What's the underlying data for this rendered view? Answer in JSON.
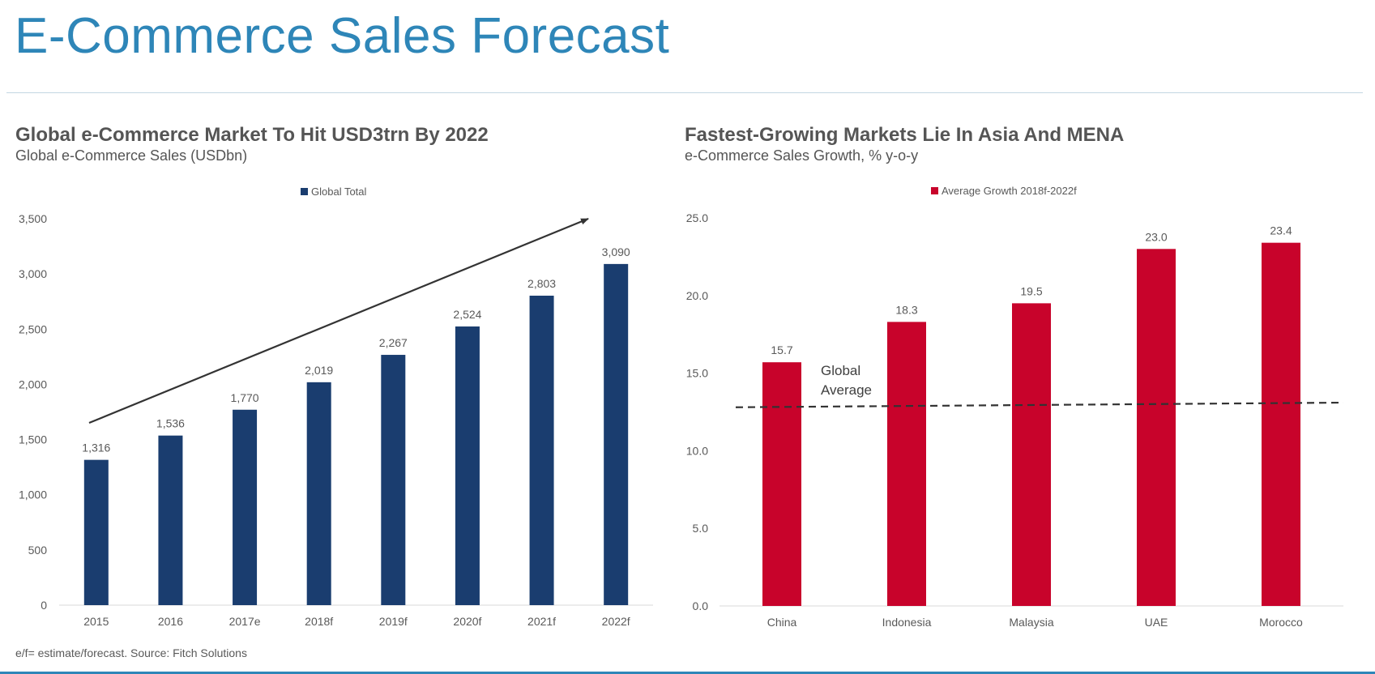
{
  "page": {
    "title": "E-Commerce Sales Forecast",
    "footnote": "e/f= estimate/forecast. Source: Fitch Solutions"
  },
  "colors": {
    "title": "#2e86b8",
    "left_bar": "#1a3d6f",
    "right_bar": "#c8032b",
    "text": "#595959",
    "axis": "#d9d9d9",
    "annotation": "#333333"
  },
  "left_chart": {
    "title": "Global e-Commerce Market To Hit USD3trn By 2022",
    "subtitle": "Global e-Commerce Sales (USDbn)"
  },
  "right_chart": {
    "title": "Fastest-Growing Markets Lie In Asia And MENA",
    "subtitle": "e-Commerce Sales Growth, % y-o-y",
    "annotation": [
      "Global",
      "Average"
    ]
  },
  "chart_data": [
    {
      "type": "bar",
      "title": "Global e-Commerce Market To Hit USD3trn By 2022",
      "subtitle": "Global e-Commerce Sales (USDbn)",
      "categories": [
        "2015",
        "2016",
        "2017e",
        "2018f",
        "2019f",
        "2020f",
        "2021f",
        "2022f"
      ],
      "series": [
        {
          "name": "Global Total",
          "values": [
            1316,
            1536,
            1770,
            2019,
            2267,
            2524,
            2803,
            3090
          ],
          "labels": [
            "1,316",
            "1,536",
            "1,770",
            "2,019",
            "2,267",
            "2,524",
            "2,803",
            "3,090"
          ]
        }
      ],
      "yticks": [
        "0",
        "500",
        "1,000",
        "1,500",
        "2,000",
        "2,500",
        "3,000",
        "3,500"
      ],
      "ylim": [
        0,
        3500
      ],
      "grid": false,
      "legend": "top-center",
      "annotations": [
        "upward trend arrow"
      ]
    },
    {
      "type": "bar",
      "title": "Fastest-Growing Markets Lie In Asia And MENA",
      "subtitle": "e-Commerce Sales Growth, % y-o-y",
      "categories": [
        "China",
        "Indonesia",
        "Malaysia",
        "UAE",
        "Morocco"
      ],
      "series": [
        {
          "name": "Average Growth 2018f-2022f",
          "values": [
            15.7,
            18.3,
            19.5,
            23.0,
            23.4
          ],
          "labels": [
            "15.7",
            "18.3",
            "19.5",
            "23.0",
            "23.4"
          ]
        }
      ],
      "yticks": [
        "0.0",
        "5.0",
        "10.0",
        "15.0",
        "20.0",
        "25.0"
      ],
      "ylim": [
        0,
        25
      ],
      "reference_line": {
        "label": "Global Average",
        "value_start": 12.8,
        "value_end": 13.1,
        "style": "dashed"
      },
      "grid": false,
      "legend": "top-center"
    }
  ]
}
